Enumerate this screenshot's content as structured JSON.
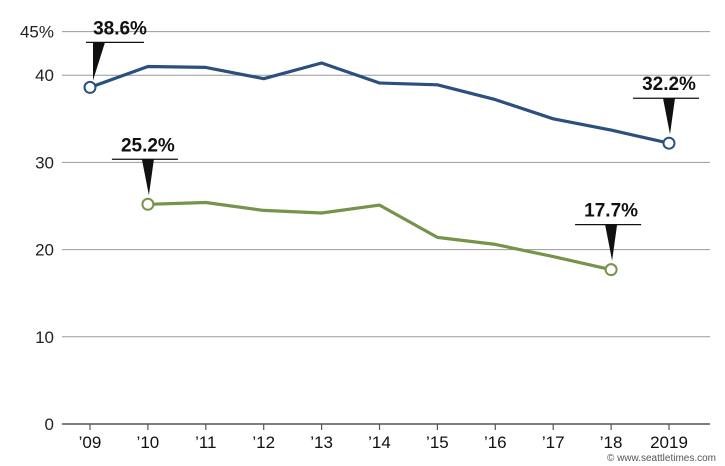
{
  "chart_data": {
    "type": "line",
    "categories": [
      "’09",
      "’10",
      "’11",
      "’12",
      "’13",
      "’14",
      "’15",
      "’16",
      "’17",
      "’18",
      "2019"
    ],
    "ylim": [
      0,
      45
    ],
    "y_ticks": [
      0,
      10,
      20,
      30,
      40,
      45
    ],
    "y_tick_labels": [
      "0",
      "10",
      "20",
      "30",
      "40",
      "45%"
    ],
    "grid": true,
    "series": [
      {
        "color": "#2b4f7e",
        "values": [
          38.6,
          41.0,
          40.9,
          39.6,
          41.4,
          39.1,
          38.9,
          37.2,
          35.0,
          33.7,
          32.2
        ],
        "callouts": [
          {
            "index": 0,
            "label": "38.6%",
            "placement": "upper-right"
          },
          {
            "index": 10,
            "label": "32.2%",
            "placement": "above"
          }
        ]
      },
      {
        "color": "#76934a",
        "values": [
          null,
          25.2,
          25.4,
          24.5,
          24.2,
          25.1,
          21.4,
          20.6,
          19.2,
          17.7,
          null
        ],
        "callouts": [
          {
            "index": 1,
            "label": "25.2%",
            "placement": "above"
          },
          {
            "index": 9,
            "label": "17.7%",
            "placement": "above"
          }
        ]
      }
    ]
  },
  "credit": "© www.seattletimes.com"
}
